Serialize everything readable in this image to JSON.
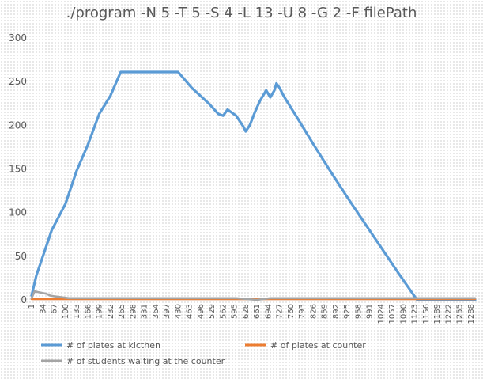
{
  "chart_data": {
    "type": "line",
    "title": "./program -N 5 -T 5 -S 4 -L 13 -U 8 -G 2 -F filePath",
    "xlabel": "",
    "ylabel": "",
    "ylim": [
      0,
      300
    ],
    "xlim": [
      1,
      1300
    ],
    "y_ticks": [
      0,
      50,
      100,
      150,
      200,
      250,
      300
    ],
    "x_tick_labels": [
      1,
      34,
      67,
      100,
      133,
      166,
      199,
      232,
      265,
      298,
      331,
      364,
      397,
      430,
      463,
      496,
      529,
      562,
      595,
      628,
      661,
      694,
      727,
      760,
      793,
      826,
      859,
      892,
      925,
      958,
      991,
      1024,
      1057,
      1090,
      1123,
      1156,
      1189,
      1222,
      1255,
      1288
    ],
    "grid": false,
    "legend_position": "bottom",
    "series": [
      {
        "name": "# of plates at kicthen",
        "color": "#5b9bd5",
        "x": [
          1,
          15,
          60,
          100,
          133,
          166,
          199,
          232,
          262,
          285,
          330,
          400,
          430,
          470,
          520,
          548,
          562,
          575,
          600,
          622,
          628,
          640,
          655,
          670,
          688,
          700,
          712,
          718,
          727,
          740,
          780,
          830,
          880,
          930,
          980,
          1030,
          1080,
          1130,
          1180,
          1230,
          1270,
          1300
        ],
        "values": [
          5,
          28,
          80,
          110,
          148,
          178,
          213,
          234,
          261,
          261,
          261,
          261,
          261,
          243,
          225,
          213,
          211,
          218,
          211,
          198,
          193,
          200,
          215,
          228,
          240,
          232,
          240,
          248,
          243,
          233,
          208,
          176,
          145,
          115,
          86,
          57,
          28,
          0,
          0,
          0,
          0,
          0
        ]
      },
      {
        "name": "# of plates at counter",
        "color": "#ed7d31",
        "x": [
          1,
          100,
          200,
          300,
          400,
          500,
          600,
          700,
          800,
          900,
          1000,
          1100,
          1200,
          1300
        ],
        "values": [
          1,
          1,
          1,
          1,
          1,
          1,
          1,
          1,
          1,
          1,
          1,
          1,
          1,
          1
        ]
      },
      {
        "name": "# of students waiting at the counter",
        "color": "#a5a5a5",
        "x": [
          1,
          10,
          20,
          45,
          55,
          70,
          90,
          110,
          150,
          200,
          300,
          400,
          500,
          600,
          660,
          700,
          800,
          900,
          1000,
          1100,
          1200,
          1300
        ],
        "values": [
          2,
          10,
          9,
          7,
          5,
          4,
          3,
          2,
          2,
          2,
          2,
          2,
          2,
          2,
          0,
          2,
          2,
          2,
          2,
          2,
          2,
          2
        ]
      }
    ]
  }
}
